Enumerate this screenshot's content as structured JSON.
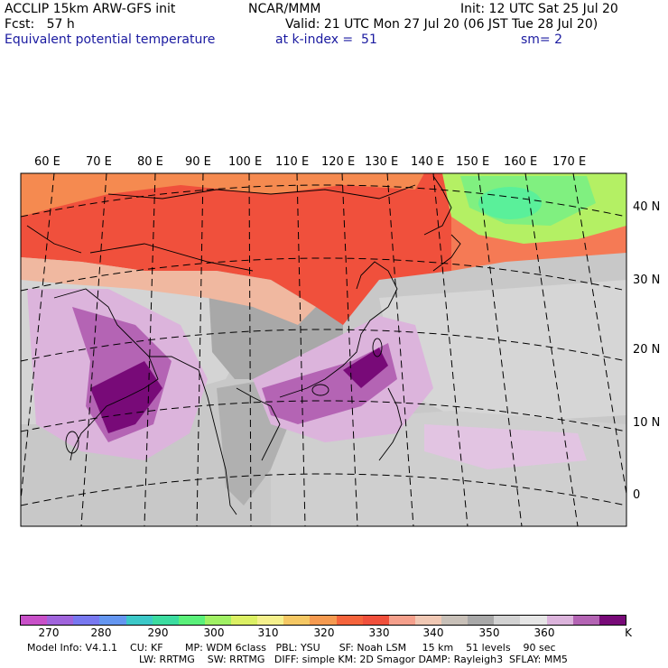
{
  "header": {
    "title_left": "ACCLIP 15km ARW-GFS init",
    "title_center": "NCAR/MMM",
    "init": "Init: 12 UTC Sat 25 Jul 20",
    "fcst": "Fcst:   57 h",
    "valid": "Valid: 21 UTC Mon 27 Jul 20 (06 JST Tue 28 Jul 20)",
    "field": "Equivalent potential temperature",
    "level": "at k-index =  51",
    "smooth": "sm= 2"
  },
  "map": {
    "lon_labels": [
      "60 E",
      "70 E",
      "80 E",
      "90 E",
      "100 E",
      "110 E",
      "120 E",
      "130 E",
      "140 E",
      "150 E",
      "160 E",
      "170 E"
    ],
    "lat_labels": [
      "40 N",
      "30 N",
      "20 N",
      "10 N",
      "0"
    ],
    "colors": {
      "background_gray": "#c8c8c8",
      "land_dark_gray": "#a8a8a8",
      "red": "#f0503c",
      "orange": "#f58a50",
      "green": "#80f080",
      "purple": "#800a80",
      "light_purple": "#dcb4dc"
    }
  },
  "colorbar": {
    "unit": "K",
    "labels": [
      "270",
      "280",
      "290",
      "300",
      "310",
      "320",
      "330",
      "340",
      "350",
      "360"
    ],
    "colors": [
      "#c850c8",
      "#a064dc",
      "#7878f0",
      "#6496f0",
      "#3cc8c8",
      "#3cdca0",
      "#5af07a",
      "#a0f064",
      "#dcf064",
      "#f5f08c",
      "#f5c864",
      "#f59a50",
      "#f5643c",
      "#f0503c",
      "#f5a08c",
      "#f0c8b4",
      "#c8c0b8",
      "#a8a8a8",
      "#d2d2d2",
      "#e6e6e6",
      "#dcb4dc",
      "#b464b4",
      "#780a78"
    ]
  },
  "footer": {
    "line1": "Model Info: V4.1.1    CU: KF       MP: WDM 6class   PBL: YSU      SF: Noah LSM     15 km    51 levels    90 sec",
    "line2": "LW: RRTMG    SW: RRTMG   DIFF: simple KM: 2D Smagor DAMP: Rayleigh3  SFLAY: MM5"
  }
}
